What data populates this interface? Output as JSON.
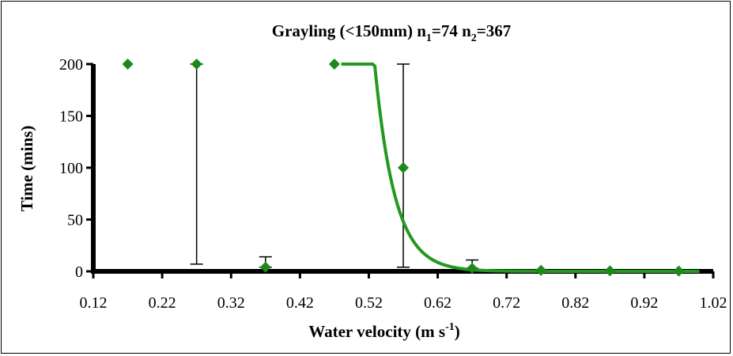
{
  "chart_data": {
    "type": "scatter",
    "title": {
      "prefix": "Grayling (<150mm) n",
      "sub1": "1",
      "mid": "=74 n",
      "sub2": "2",
      "suffix": "=367"
    },
    "xlabel": {
      "main": "Water velocity (m s",
      "sup": "-1",
      "close": ")"
    },
    "ylabel": "Time (mins)",
    "xlim": [
      0.12,
      1.02
    ],
    "ylim": [
      0,
      200
    ],
    "x_ticks": [
      "0.12",
      "0.22",
      "0.32",
      "0.42",
      "0.52",
      "0.62",
      "0.72",
      "0.82",
      "0.92",
      "1.02"
    ],
    "y_ticks": [
      "0",
      "50",
      "100",
      "150",
      "200"
    ],
    "grid": false,
    "legend": "none",
    "marker_color": "#1a8a1a",
    "curve_color": "#22991f",
    "points": [
      {
        "x": 0.17,
        "y": 200
      },
      {
        "x": 0.27,
        "y": 200,
        "err_low": 7,
        "err_high": 200
      },
      {
        "x": 0.37,
        "y": 4,
        "err_low": 4,
        "err_high": 14
      },
      {
        "x": 0.47,
        "y": 200
      },
      {
        "x": 0.57,
        "y": 100,
        "err_low": 4,
        "err_high": 200
      },
      {
        "x": 0.67,
        "y": 3,
        "err_low": 3,
        "err_high": 11
      },
      {
        "x": 0.77,
        "y": 1
      },
      {
        "x": 0.87,
        "y": 0.5
      },
      {
        "x": 0.97,
        "y": 0.3
      }
    ],
    "fit_curve": {
      "type": "exponential",
      "a": 14900000000,
      "b": 34.3,
      "x_start": 0.48,
      "x_end": 1.0
    }
  }
}
